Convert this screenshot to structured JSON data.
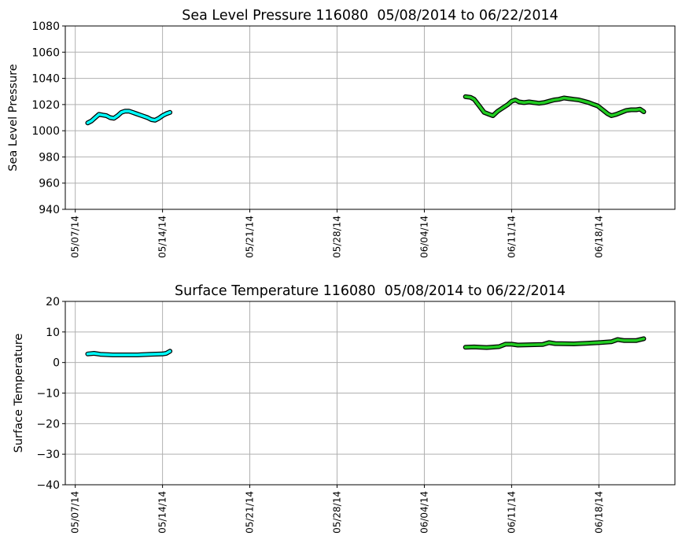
{
  "chart_data": [
    {
      "type": "line",
      "title": "Sea Level Pressure 116080  05/08/2014 to 06/22/2014",
      "xlabel": "",
      "ylabel": "Sea Level Pressure",
      "x_units": "days since 05/07/14",
      "xlim": [
        -0.8,
        48.1
      ],
      "ylim": [
        940,
        1080
      ],
      "yticks": [
        940,
        960,
        980,
        1000,
        1020,
        1040,
        1060,
        1080
      ],
      "xticks": [
        0,
        7,
        14,
        21,
        28,
        35,
        42
      ],
      "xtick_labels": [
        "05/07/14",
        "05/14/14",
        "05/21/14",
        "05/28/14",
        "06/04/14",
        "06/11/14",
        "06/18/14"
      ],
      "grid": true,
      "series": [
        {
          "name": "segment-1",
          "color": "#00ffff",
          "points": [
            [
              1.0,
              1006
            ],
            [
              1.3,
              1007.5
            ],
            [
              1.6,
              1010
            ],
            [
              1.9,
              1012.5
            ],
            [
              2.2,
              1012
            ],
            [
              2.5,
              1011.5
            ],
            [
              2.8,
              1010
            ],
            [
              3.1,
              1009.5
            ],
            [
              3.4,
              1011.5
            ],
            [
              3.7,
              1014
            ],
            [
              4.0,
              1015
            ],
            [
              4.3,
              1015
            ],
            [
              4.6,
              1014
            ],
            [
              4.9,
              1013
            ],
            [
              5.2,
              1012
            ],
            [
              5.5,
              1011
            ],
            [
              5.8,
              1010
            ],
            [
              6.1,
              1008.5
            ],
            [
              6.4,
              1008
            ],
            [
              6.7,
              1009.5
            ],
            [
              7.0,
              1011.5
            ],
            [
              7.3,
              1013
            ],
            [
              7.6,
              1014
            ]
          ]
        },
        {
          "name": "segment-2",
          "color": "#22cc22",
          "points": [
            [
              31.3,
              1026
            ],
            [
              31.7,
              1025.5
            ],
            [
              32.0,
              1024
            ],
            [
              32.4,
              1019
            ],
            [
              32.8,
              1014
            ],
            [
              33.2,
              1012.5
            ],
            [
              33.5,
              1011.5
            ],
            [
              33.9,
              1015
            ],
            [
              34.3,
              1017.5
            ],
            [
              34.7,
              1020
            ],
            [
              35.0,
              1022.5
            ],
            [
              35.3,
              1023.5
            ],
            [
              35.6,
              1022
            ],
            [
              36.0,
              1021.5
            ],
            [
              36.4,
              1022
            ],
            [
              36.8,
              1021.5
            ],
            [
              37.2,
              1021
            ],
            [
              37.6,
              1021.5
            ],
            [
              38.0,
              1022.5
            ],
            [
              38.4,
              1023.5
            ],
            [
              38.8,
              1024
            ],
            [
              39.2,
              1025
            ],
            [
              39.6,
              1024.5
            ],
            [
              40.0,
              1024
            ],
            [
              40.4,
              1023.5
            ],
            [
              40.8,
              1022.5
            ],
            [
              41.2,
              1021.5
            ],
            [
              41.6,
              1020
            ],
            [
              41.9,
              1019
            ],
            [
              42.3,
              1016
            ],
            [
              42.7,
              1013
            ],
            [
              43.0,
              1011.5
            ],
            [
              43.4,
              1012.5
            ],
            [
              43.8,
              1014
            ],
            [
              44.2,
              1015.5
            ],
            [
              44.6,
              1016
            ],
            [
              45.0,
              1016
            ],
            [
              45.3,
              1016.5
            ],
            [
              45.6,
              1014.5
            ]
          ]
        }
      ]
    },
    {
      "type": "line",
      "title": "Surface Temperature 116080  05/08/2014 to 06/22/2014",
      "xlabel": "",
      "ylabel": "Surface Temperature",
      "x_units": "days since 05/07/14",
      "xlim": [
        -0.8,
        48.1
      ],
      "ylim": [
        -40,
        20
      ],
      "yticks": [
        -40,
        -30,
        -20,
        -10,
        0,
        10,
        20
      ],
      "xticks": [
        0,
        7,
        14,
        21,
        28,
        35,
        42
      ],
      "xtick_labels": [
        "05/07/14",
        "05/14/14",
        "05/21/14",
        "05/28/14",
        "06/04/14",
        "06/11/14",
        "06/18/14"
      ],
      "grid": true,
      "series": [
        {
          "name": "segment-1",
          "color": "#00ffff",
          "points": [
            [
              1.0,
              2.8
            ],
            [
              1.5,
              3.0
            ],
            [
              2.0,
              2.7
            ],
            [
              3.0,
              2.5
            ],
            [
              4.0,
              2.5
            ],
            [
              5.0,
              2.5
            ],
            [
              6.0,
              2.7
            ],
            [
              7.0,
              2.8
            ],
            [
              7.3,
              3.0
            ],
            [
              7.6,
              3.7
            ]
          ]
        },
        {
          "name": "segment-2",
          "color": "#22cc22",
          "points": [
            [
              31.3,
              5.0
            ],
            [
              32.0,
              5.1
            ],
            [
              33.0,
              4.9
            ],
            [
              34.0,
              5.2
            ],
            [
              34.5,
              6.0
            ],
            [
              35.0,
              6.0
            ],
            [
              35.5,
              5.7
            ],
            [
              36.5,
              5.8
            ],
            [
              37.5,
              5.9
            ],
            [
              38.0,
              6.5
            ],
            [
              38.5,
              6.2
            ],
            [
              40.0,
              6.1
            ],
            [
              41.0,
              6.3
            ],
            [
              42.0,
              6.5
            ],
            [
              43.0,
              6.8
            ],
            [
              43.5,
              7.5
            ],
            [
              44.0,
              7.2
            ],
            [
              45.0,
              7.2
            ],
            [
              45.6,
              7.8
            ]
          ]
        }
      ]
    }
  ]
}
